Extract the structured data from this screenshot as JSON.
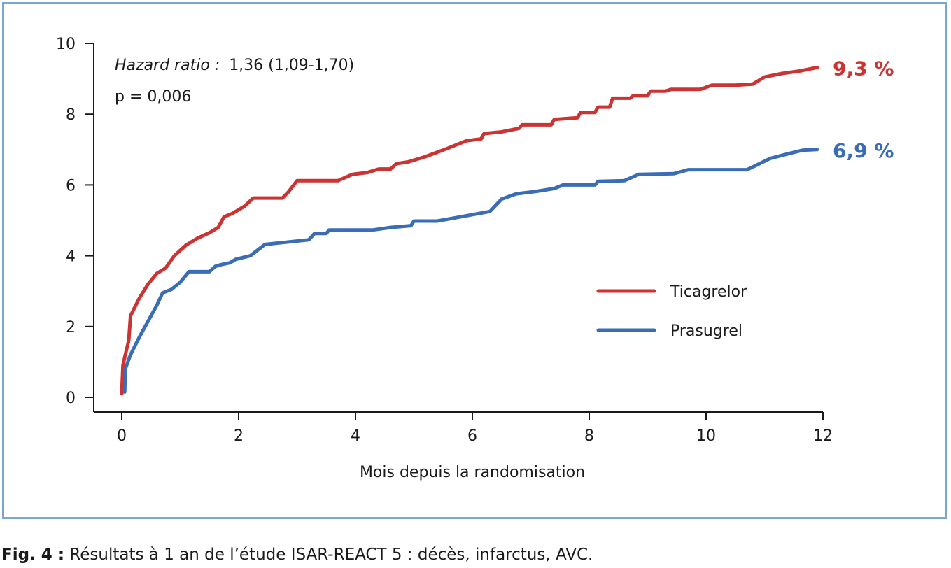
{
  "chart_data": {
    "type": "line",
    "title": "",
    "xlabel": "Mois depuis la randomisation",
    "ylabel": "",
    "xlim": [
      0,
      12
    ],
    "ylim": [
      0,
      10
    ],
    "xticks": [
      "0",
      "2",
      "4",
      "6",
      "8",
      "10",
      "12"
    ],
    "yticks": [
      "0",
      "2",
      "4",
      "6",
      "8",
      "10"
    ],
    "grid": false,
    "legend_position": "right-center",
    "annotations": {
      "hr_label": "Hazard ratio :",
      "hr_value": "1,36 (1,09-1,70)",
      "p_value": "p = 0,006"
    },
    "series": [
      {
        "name": "Ticagrelor",
        "color": "#cc3333",
        "end_label": "9,3 %",
        "points": [
          [
            0,
            0.1
          ],
          [
            0.02,
            0.9
          ],
          [
            0.06,
            1.2
          ],
          [
            0.12,
            1.6
          ],
          [
            0.15,
            2.3
          ],
          [
            0.3,
            2.8
          ],
          [
            0.45,
            3.2
          ],
          [
            0.6,
            3.5
          ],
          [
            0.75,
            3.65
          ],
          [
            0.9,
            4.0
          ],
          [
            1.1,
            4.3
          ],
          [
            1.3,
            4.5
          ],
          [
            1.5,
            4.65
          ],
          [
            1.65,
            4.8
          ],
          [
            1.75,
            5.1
          ],
          [
            1.9,
            5.2
          ],
          [
            2.1,
            5.4
          ],
          [
            2.25,
            5.63
          ],
          [
            2.75,
            5.63
          ],
          [
            2.85,
            5.8
          ],
          [
            3.0,
            6.12
          ],
          [
            3.7,
            6.12
          ],
          [
            3.95,
            6.3
          ],
          [
            4.2,
            6.35
          ],
          [
            4.4,
            6.45
          ],
          [
            4.6,
            6.45
          ],
          [
            4.7,
            6.6
          ],
          [
            4.9,
            6.65
          ],
          [
            5.2,
            6.8
          ],
          [
            5.6,
            7.05
          ],
          [
            5.9,
            7.25
          ],
          [
            6.15,
            7.3
          ],
          [
            6.2,
            7.45
          ],
          [
            6.5,
            7.5
          ],
          [
            6.8,
            7.6
          ],
          [
            6.85,
            7.7
          ],
          [
            7.35,
            7.7
          ],
          [
            7.4,
            7.85
          ],
          [
            7.8,
            7.9
          ],
          [
            7.85,
            8.05
          ],
          [
            8.1,
            8.05
          ],
          [
            8.15,
            8.2
          ],
          [
            8.35,
            8.2
          ],
          [
            8.4,
            8.45
          ],
          [
            8.7,
            8.45
          ],
          [
            8.75,
            8.52
          ],
          [
            9.0,
            8.52
          ],
          [
            9.05,
            8.65
          ],
          [
            9.3,
            8.65
          ],
          [
            9.4,
            8.7
          ],
          [
            9.9,
            8.7
          ],
          [
            10.1,
            8.82
          ],
          [
            10.5,
            8.82
          ],
          [
            10.8,
            8.85
          ],
          [
            11.0,
            9.05
          ],
          [
            11.3,
            9.15
          ],
          [
            11.6,
            9.22
          ],
          [
            11.9,
            9.32
          ]
        ]
      },
      {
        "name": "Prasugrel",
        "color": "#3a6db5",
        "end_label": "6,9 %",
        "points": [
          [
            0.05,
            0.15
          ],
          [
            0.06,
            0.8
          ],
          [
            0.15,
            1.2
          ],
          [
            0.3,
            1.7
          ],
          [
            0.45,
            2.15
          ],
          [
            0.6,
            2.6
          ],
          [
            0.7,
            2.95
          ],
          [
            0.85,
            3.05
          ],
          [
            1.0,
            3.25
          ],
          [
            1.15,
            3.55
          ],
          [
            1.5,
            3.55
          ],
          [
            1.6,
            3.7
          ],
          [
            1.7,
            3.75
          ],
          [
            1.85,
            3.8
          ],
          [
            1.95,
            3.9
          ],
          [
            2.2,
            4.0
          ],
          [
            2.45,
            4.32
          ],
          [
            3.2,
            4.45
          ],
          [
            3.3,
            4.63
          ],
          [
            3.5,
            4.63
          ],
          [
            3.55,
            4.73
          ],
          [
            4.3,
            4.73
          ],
          [
            4.6,
            4.8
          ],
          [
            4.95,
            4.85
          ],
          [
            5.0,
            4.98
          ],
          [
            5.4,
            4.98
          ],
          [
            5.8,
            5.1
          ],
          [
            6.3,
            5.25
          ],
          [
            6.5,
            5.6
          ],
          [
            6.75,
            5.75
          ],
          [
            7.1,
            5.82
          ],
          [
            7.4,
            5.9
          ],
          [
            7.55,
            6.0
          ],
          [
            8.1,
            6.0
          ],
          [
            8.15,
            6.1
          ],
          [
            8.6,
            6.12
          ],
          [
            8.85,
            6.3
          ],
          [
            9.45,
            6.32
          ],
          [
            9.7,
            6.43
          ],
          [
            10.7,
            6.43
          ],
          [
            10.85,
            6.55
          ],
          [
            11.1,
            6.75
          ],
          [
            11.4,
            6.88
          ],
          [
            11.65,
            6.98
          ],
          [
            11.9,
            7.0
          ]
        ]
      }
    ]
  },
  "caption": {
    "label": "Fig. 4 :",
    "text": "Résultats à 1 an de l’étude ISAR-REACT 5 : décès, infarctus, AVC."
  }
}
